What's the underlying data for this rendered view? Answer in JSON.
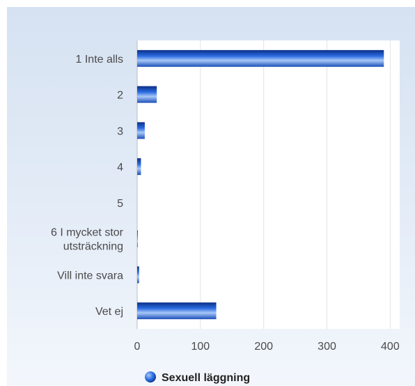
{
  "chart_data": {
    "type": "bar",
    "orientation": "horizontal",
    "categories": [
      [
        "1 Inte alls"
      ],
      [
        "2"
      ],
      [
        "3"
      ],
      [
        "4"
      ],
      [
        "5"
      ],
      [
        "6 I mycket stor",
        "utsträckning"
      ],
      [
        "Vill inte svara"
      ],
      [
        "Vet ej"
      ]
    ],
    "series": [
      {
        "name": "Sexuell läggning",
        "values": [
          390,
          31,
          12,
          6,
          0,
          1,
          3,
          125
        ]
      }
    ],
    "xlim": [
      0,
      415
    ],
    "xticks": [
      0,
      100,
      200,
      300,
      400
    ],
    "grid": true,
    "legend": "bottom-center",
    "colors": {
      "bar_dark": "#0b2f86",
      "bar_mid": "#2a6be0",
      "bar_light": "#a9c8f8",
      "grid": "#e3e3e3",
      "plot_bg": "#ffffff"
    }
  }
}
